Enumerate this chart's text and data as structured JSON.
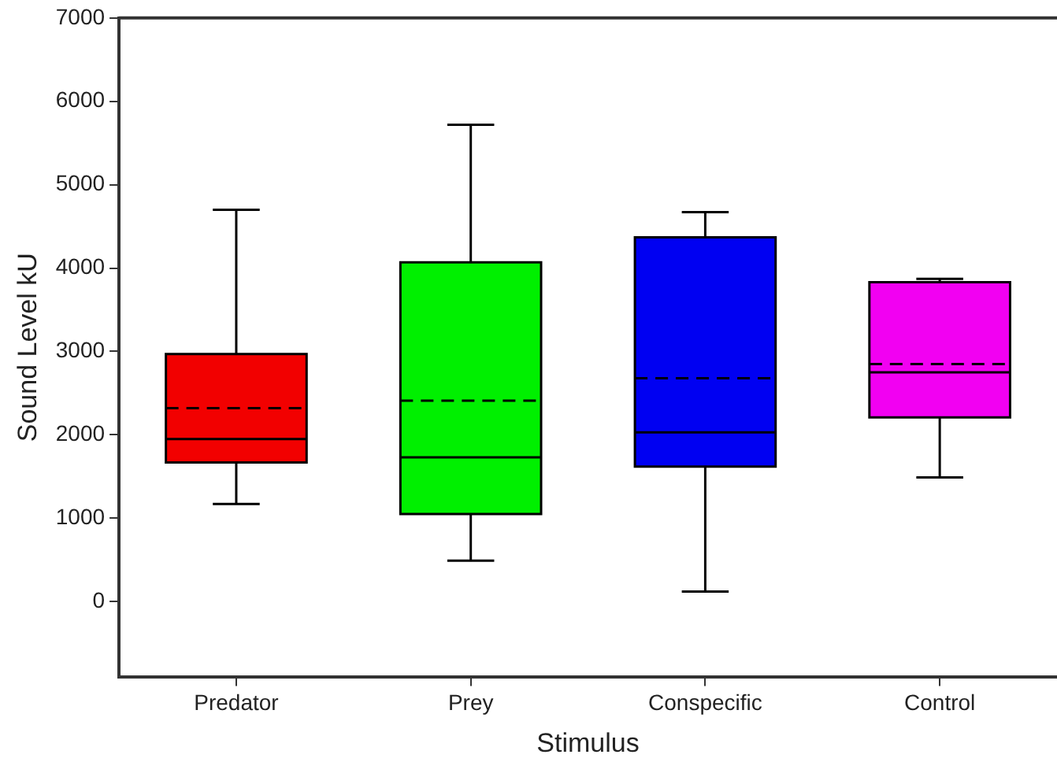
{
  "chart_data": {
    "type": "box",
    "xlabel": "Stimulus",
    "ylabel": "Sound Level kU",
    "categories": [
      "Predator",
      "Prey",
      "Conspecific",
      "Control"
    ],
    "colors": [
      "#f20000",
      "#00f000",
      "#0000f2",
      "#f200f2"
    ],
    "boxes": [
      {
        "low": 1170,
        "q1": 1670,
        "median": 1950,
        "q3": 2970,
        "high": 4700,
        "mean": 2320
      },
      {
        "low": 490,
        "q1": 1050,
        "median": 1730,
        "q3": 4070,
        "high": 5720,
        "mean": 2410
      },
      {
        "low": 120,
        "q1": 1620,
        "median": 2030,
        "q3": 4370,
        "high": 4670,
        "mean": 2680
      },
      {
        "low": 1490,
        "q1": 2210,
        "median": 2750,
        "q3": 3830,
        "high": 3870,
        "mean": 2850
      }
    ],
    "ylim": [
      -900,
      7000
    ],
    "yticks": [
      0,
      1000,
      2000,
      3000,
      4000,
      5000,
      6000,
      7000
    ],
    "grid": false
  }
}
